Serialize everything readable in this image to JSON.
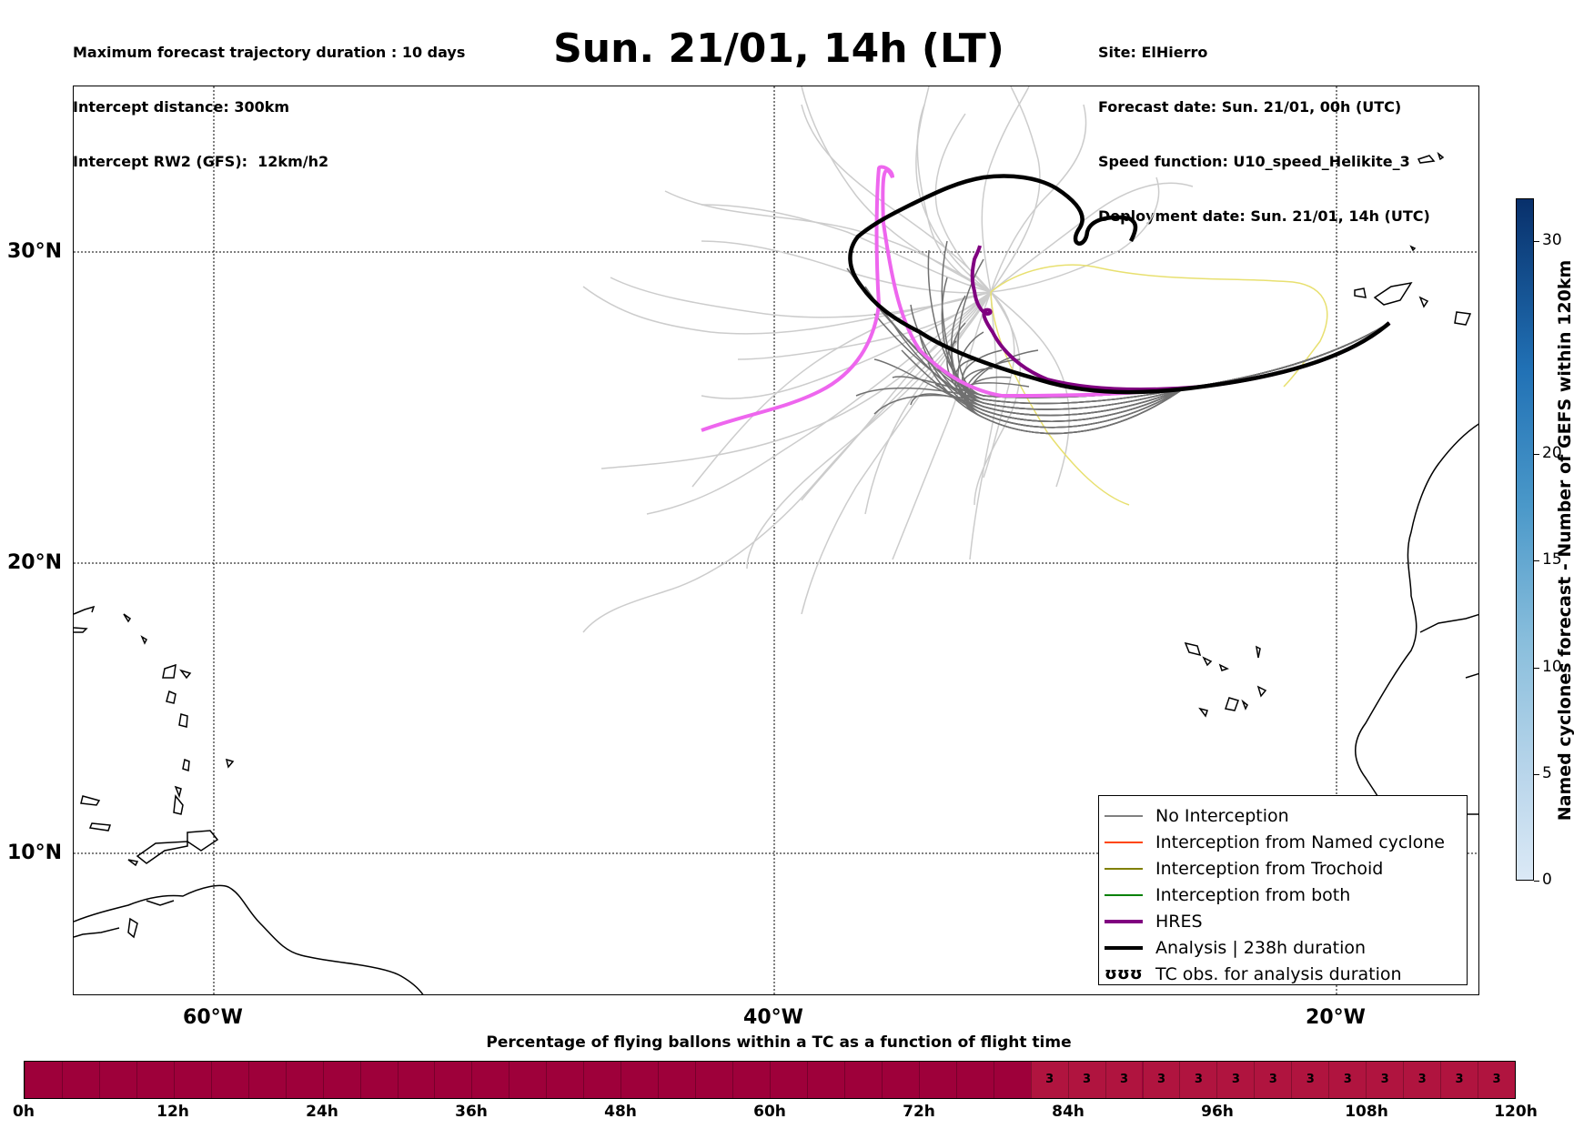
{
  "header": {
    "left_lines": [
      "Maximum forecast trajectory duration : 10 days",
      "Intercept distance: 300km",
      "Intercept RW2 (GFS):  12km/h2"
    ],
    "title": "Sun. 21/01, 14h (LT)",
    "right_lines": [
      "Site: ElHierro",
      "Forecast date: Sun. 21/01, 00h (UTC)",
      "Speed function: U10_speed_Helikite_3",
      "Deployment date: Sun. 21/01, 14h (UTC)"
    ]
  },
  "map": {
    "lat_labels": [
      "30°N",
      "20°N",
      "10°N"
    ],
    "lon_labels": [
      "60°W",
      "40°W",
      "20°W"
    ],
    "colors": {
      "ensemble_far": "#cccccc",
      "no_interception": "#6e6e6e",
      "named_cyclone": "#ff4500",
      "trochoid": "#808000",
      "trochoid_faint": "#e8e070",
      "both": "#008000",
      "hres": "#800080",
      "hres_alt": "#ee66ee",
      "analysis": "#000000"
    }
  },
  "legend": {
    "items": [
      {
        "label": "No Interception",
        "color": "#808080",
        "width": 1.5
      },
      {
        "label": "Interception from Named cyclone",
        "color": "#ff4500",
        "width": 1.5
      },
      {
        "label": "Interception from Trochoid",
        "color": "#808000",
        "width": 1.5
      },
      {
        "label": "Interception from both",
        "color": "#008000",
        "width": 1.5
      },
      {
        "label": "HRES",
        "color": "#800080",
        "width": 4
      },
      {
        "label": "Analysis | 238h duration",
        "color": "#000000",
        "width": 4
      },
      {
        "label": "TC obs. for analysis duration",
        "symbol": "ʊʊʊ"
      }
    ]
  },
  "colorbar": {
    "title": "Named cyclones forecast - Number of GEFS within 120km",
    "ticks": [
      "0",
      "5",
      "10",
      "15",
      "20",
      "30"
    ]
  },
  "timeline": {
    "title": "Percentage of flying ballons within a TC as a function of flight time",
    "labels": [
      "0h",
      "12h",
      "24h",
      "36h",
      "48h",
      "60h",
      "72h",
      "84h",
      "96h",
      "108h",
      "120h"
    ],
    "cell_value": "3",
    "base_color": "#9e003a",
    "active_color": "#b0143f"
  }
}
